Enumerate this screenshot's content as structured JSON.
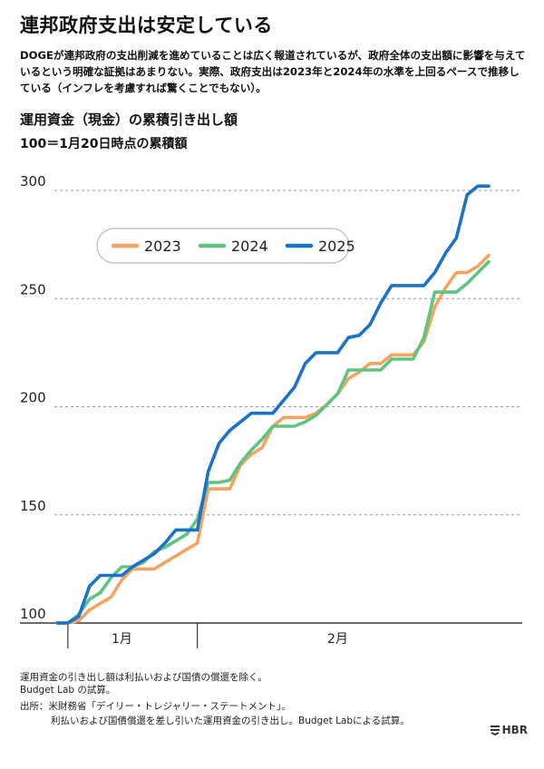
{
  "header": {
    "title": "連邦政府支出は安定している",
    "lead": "DOGEが連邦政府の支出削減を進めていることは広く報道されているが、政府全体の支出額に影響を与えているという明確な証拠はあまりない。実際、政府支出は2023年と2024年の水準を上回るペースで推移している（インフレを考慮すれば驚くことでもない）。"
  },
  "chart_data": {
    "type": "line",
    "title": "運用資金（現金）の累積引き出し額",
    "subtitle": "100＝1月20日時点の累積額",
    "ylim": [
      100,
      300
    ],
    "yticks": [
      100,
      150,
      200,
      250,
      300
    ],
    "x_range": [
      0,
      41
    ],
    "x_ticks": [
      1,
      13
    ],
    "x_tick_labels": [
      {
        "label": "1月",
        "x": 6
      },
      {
        "label": "2月",
        "x": 26
      }
    ],
    "grid": "horizontal dashed",
    "legend_position": "top-left",
    "series": [
      {
        "name": "2023",
        "color": "#f4a460",
        "x": [
          0,
          1,
          2,
          3,
          4,
          5,
          6,
          7,
          8,
          9,
          10,
          11,
          12,
          13,
          14,
          15,
          16,
          17,
          18,
          19,
          20,
          21,
          22,
          23,
          24,
          25,
          26,
          27,
          28,
          29,
          30,
          31,
          32,
          33,
          34,
          35,
          36,
          37,
          38,
          39,
          40
        ],
        "y": [
          100,
          100,
          101,
          106,
          109,
          112,
          120,
          125,
          125,
          125,
          128,
          131,
          134,
          137,
          162,
          162,
          162,
          173,
          178,
          181,
          191,
          195,
          195,
          195,
          197,
          201,
          206,
          213,
          216,
          220,
          220,
          224,
          224,
          224,
          230,
          246,
          255,
          262,
          262,
          265,
          270
        ]
      },
      {
        "name": "2024",
        "color": "#5ec480",
        "x": [
          0,
          1,
          2,
          3,
          4,
          5,
          6,
          7,
          8,
          9,
          10,
          11,
          12,
          13,
          14,
          15,
          16,
          17,
          18,
          19,
          20,
          21,
          22,
          23,
          24,
          25,
          26,
          27,
          28,
          29,
          30,
          31,
          32,
          33,
          34,
          35,
          36,
          37,
          38,
          39,
          40
        ],
        "y": [
          100,
          100,
          104,
          111,
          114,
          121,
          126,
          126,
          128,
          133,
          135,
          138,
          141,
          148,
          165,
          165,
          166,
          174,
          180,
          185,
          191,
          191,
          191,
          193,
          196,
          201,
          206,
          217,
          217,
          217,
          217,
          222,
          222,
          222,
          232,
          253,
          253,
          253,
          257,
          262,
          267
        ]
      },
      {
        "name": "2025",
        "color": "#1a73c8",
        "x": [
          0,
          1,
          2,
          3,
          4,
          5,
          6,
          7,
          8,
          9,
          10,
          11,
          12,
          13,
          14,
          15,
          16,
          17,
          18,
          19,
          20,
          21,
          22,
          23,
          24,
          25,
          26,
          27,
          28,
          29,
          30,
          31,
          32,
          33,
          34,
          35,
          36,
          37,
          38,
          39,
          40
        ],
        "y": [
          100,
          100,
          103,
          117,
          122,
          122,
          122,
          126,
          129,
          132,
          137,
          143,
          143,
          143,
          170,
          183,
          189,
          193,
          197,
          197,
          197,
          203,
          209,
          220,
          225,
          225,
          225,
          232,
          233,
          238,
          248,
          256,
          256,
          256,
          256,
          262,
          271,
          278,
          298,
          302,
          302
        ]
      }
    ]
  },
  "notes": {
    "line1": "運用資金の引き出し額は利払いおよび国債の償還を除く。",
    "line2": "Budget Lab の試算。"
  },
  "source": {
    "line1": "出所：米財務省「デイリー・トレジャリー・ステートメント」。",
    "line2": "利払いおよび国債償還を差し引いた運用資金の引き出し。Budget Labによる試算。"
  },
  "brand": {
    "name": "HBR"
  }
}
